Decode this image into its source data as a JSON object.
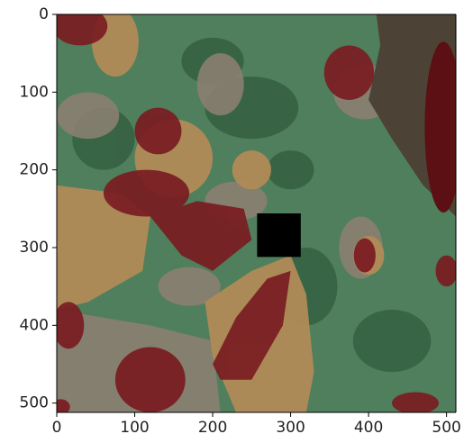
{
  "chart_data": {
    "type": "image",
    "xlim": [
      0,
      512
    ],
    "ylim": [
      512,
      0
    ],
    "xticks": [
      0,
      100,
      200,
      300,
      400,
      500
    ],
    "yticks": [
      0,
      100,
      200,
      300,
      400,
      500
    ]
  }
}
